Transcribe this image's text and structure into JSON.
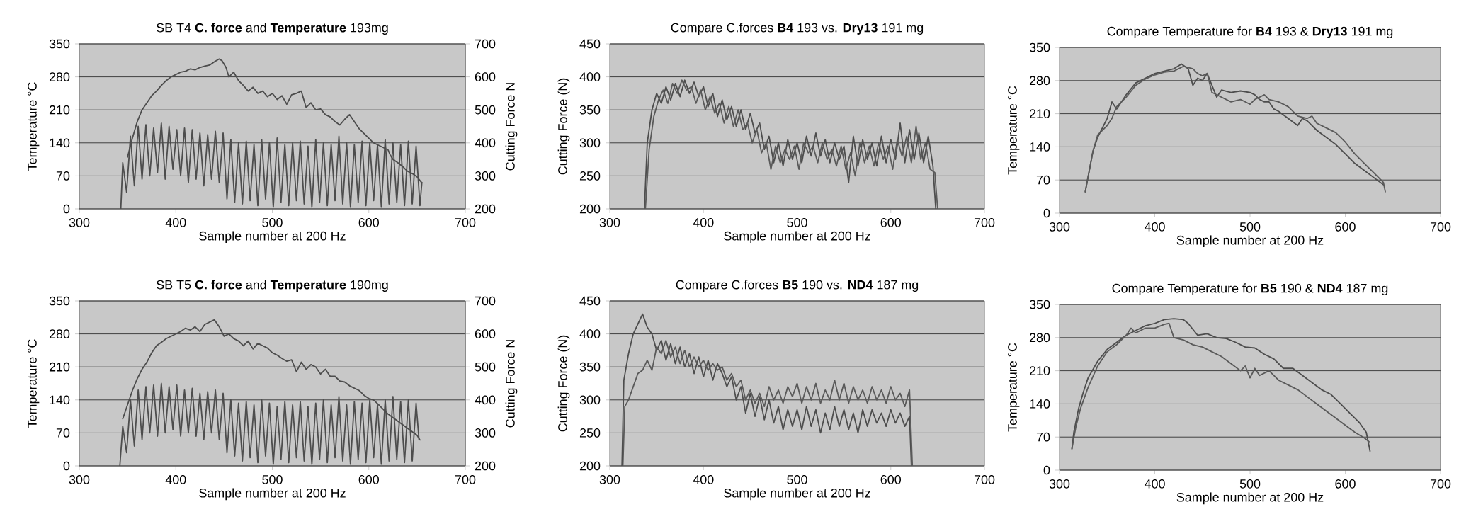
{
  "chart_data": [
    {
      "type": "line",
      "title": "SB T4 **C. force** and **Temperature** 193mg",
      "xlabel": "Sample number at 200 Hz",
      "ylabel": "Temperature °C",
      "y2label": "Cutting Force N",
      "xlim": [
        300,
        700
      ],
      "xticks": [
        300,
        400,
        500,
        600,
        700
      ],
      "ylim": [
        0,
        350
      ],
      "yticks": [
        0,
        70,
        140,
        210,
        280,
        350
      ],
      "y2lim": [
        200,
        700
      ],
      "y2ticks": [
        200,
        300,
        400,
        500,
        600,
        700
      ],
      "grid": "y",
      "series": [
        {
          "color": "#4d4d4d",
          "x": [
            350,
            355,
            360,
            365,
            370,
            375,
            380,
            385,
            390,
            395,
            400,
            405,
            410,
            415,
            420,
            425,
            430,
            435,
            440,
            445,
            448,
            452,
            455,
            460,
            465,
            470,
            475,
            480,
            485,
            490,
            495,
            500,
            505,
            510,
            515,
            520,
            525,
            530,
            535,
            540,
            545,
            550,
            555,
            560,
            565,
            570,
            575,
            580,
            585,
            590,
            595,
            600,
            605,
            610,
            615,
            620,
            622,
            625,
            630,
            635,
            640,
            645,
            650,
            655
          ],
          "values": [
            110,
            150,
            185,
            210,
            225,
            240,
            250,
            262,
            272,
            280,
            285,
            290,
            292,
            297,
            295,
            300,
            303,
            305,
            312,
            318,
            314,
            300,
            280,
            290,
            272,
            262,
            250,
            258,
            245,
            250,
            238,
            245,
            232,
            240,
            222,
            242,
            245,
            250,
            215,
            225,
            210,
            212,
            200,
            195,
            185,
            178,
            190,
            200,
            185,
            170,
            160,
            150,
            140,
            135,
            130,
            125,
            115,
            105,
            98,
            90,
            80,
            75,
            68,
            55
          ]
        },
        {
          "color": "#4d4d4d",
          "axis": "y2",
          "x": [
            343,
            345,
            349,
            353,
            357,
            361,
            365,
            369,
            373,
            377,
            381,
            385,
            389,
            393,
            397,
            401,
            405,
            409,
            413,
            417,
            421,
            425,
            429,
            433,
            437,
            441,
            445,
            449,
            453,
            457,
            461,
            465,
            469,
            473,
            477,
            481,
            485,
            489,
            493,
            497,
            501,
            505,
            509,
            513,
            517,
            521,
            525,
            529,
            533,
            537,
            541,
            545,
            549,
            553,
            557,
            561,
            565,
            569,
            573,
            577,
            581,
            585,
            589,
            593,
            597,
            601,
            605,
            609,
            613,
            617,
            621,
            625,
            629,
            633,
            637,
            641,
            645,
            649,
            653,
            655
          ],
          "values": [
            200,
            340,
            250,
            420,
            270,
            450,
            290,
            455,
            300,
            445,
            310,
            460,
            290,
            450,
            320,
            440,
            300,
            445,
            280,
            440,
            290,
            430,
            270,
            425,
            290,
            435,
            280,
            430,
            230,
            410,
            220,
            400,
            215,
            405,
            225,
            395,
            210,
            410,
            230,
            400,
            205,
            415,
            220,
            395,
            210,
            400,
            225,
            405,
            215,
            390,
            205,
            410,
            220,
            400,
            210,
            395,
            225,
            420,
            215,
            400,
            205,
            395,
            220,
            405,
            210,
            400,
            225,
            395,
            205,
            410,
            215,
            400,
            220,
            395,
            210,
            405,
            215,
            390,
            210,
            280
          ]
        }
      ]
    },
    {
      "type": "line",
      "title": "Compare C.forces **B4** 193 vs. **Dry13** 191 mg",
      "xlabel": "Sample number at 200 Hz",
      "ylabel": "Cutting Force (N)",
      "xlim": [
        300,
        700
      ],
      "xticks": [
        300,
        400,
        500,
        600,
        700
      ],
      "ylim": [
        200,
        450
      ],
      "yticks": [
        200,
        250,
        300,
        350,
        400,
        450
      ],
      "grid": "y",
      "series": [
        {
          "color": "#4d4d4d",
          "x": [
            337,
            340,
            345,
            350,
            355,
            360,
            365,
            370,
            375,
            380,
            385,
            390,
            395,
            400,
            405,
            410,
            415,
            420,
            425,
            430,
            435,
            440,
            445,
            450,
            455,
            460,
            465,
            470,
            475,
            480,
            485,
            490,
            495,
            500,
            505,
            510,
            515,
            520,
            525,
            530,
            535,
            540,
            545,
            550,
            555,
            560,
            565,
            570,
            575,
            580,
            585,
            590,
            595,
            600,
            605,
            610,
            615,
            620,
            625,
            630,
            635,
            640,
            645,
            648
          ],
          "values": [
            200,
            300,
            350,
            375,
            360,
            385,
            365,
            390,
            370,
            395,
            375,
            392,
            370,
            385,
            355,
            375,
            340,
            365,
            335,
            355,
            325,
            350,
            320,
            345,
            315,
            330,
            290,
            310,
            270,
            300,
            265,
            305,
            275,
            300,
            270,
            310,
            280,
            315,
            280,
            305,
            270,
            300,
            275,
            295,
            240,
            310,
            265,
            305,
            275,
            300,
            265,
            310,
            270,
            305,
            275,
            330,
            270,
            320,
            275,
            315,
            270,
            310,
            265,
            200
          ]
        },
        {
          "color": "#5a5a5a",
          "x": [
            338,
            342,
            347,
            352,
            357,
            362,
            367,
            372,
            377,
            382,
            387,
            392,
            397,
            402,
            407,
            412,
            417,
            422,
            427,
            432,
            437,
            442,
            447,
            452,
            457,
            462,
            467,
            472,
            477,
            482,
            487,
            492,
            497,
            502,
            507,
            512,
            517,
            522,
            527,
            532,
            537,
            542,
            547,
            552,
            557,
            562,
            567,
            572,
            577,
            582,
            587,
            592,
            597,
            602,
            607,
            612,
            617,
            622,
            627,
            632,
            637,
            642,
            647,
            650
          ],
          "values": [
            200,
            290,
            340,
            365,
            380,
            360,
            390,
            375,
            395,
            380,
            385,
            360,
            380,
            350,
            370,
            345,
            360,
            330,
            355,
            325,
            350,
            320,
            330,
            300,
            320,
            285,
            300,
            260,
            295,
            270,
            290,
            275,
            295,
            260,
            300,
            285,
            295,
            270,
            300,
            275,
            290,
            265,
            295,
            260,
            285,
            250,
            300,
            270,
            295,
            265,
            300,
            275,
            295,
            260,
            305,
            280,
            310,
            270,
            325,
            275,
            300,
            260,
            255,
            200
          ]
        }
      ]
    },
    {
      "type": "line",
      "title": "Compare Temperature for **B4** 193 & **Dry13** 191 mg",
      "xlabel": "Sample number at 200 Hz",
      "ylabel": "Temperature °C",
      "xlim": [
        300,
        700
      ],
      "xticks": [
        300,
        400,
        500,
        600,
        700
      ],
      "ylim": [
        0,
        350
      ],
      "yticks": [
        0,
        70,
        140,
        210,
        280,
        350
      ],
      "grid": "y",
      "series": [
        {
          "color": "#4d4d4d",
          "x": [
            327,
            335,
            340,
            345,
            350,
            355,
            360,
            370,
            380,
            390,
            400,
            410,
            420,
            428,
            435,
            440,
            445,
            450,
            455,
            460,
            465,
            470,
            480,
            490,
            500,
            505,
            510,
            515,
            520,
            525,
            530,
            540,
            550,
            555,
            560,
            570,
            580,
            590,
            600,
            610,
            620,
            630,
            640
          ],
          "values": [
            45,
            130,
            160,
            180,
            200,
            235,
            220,
            250,
            275,
            285,
            295,
            300,
            305,
            315,
            305,
            270,
            285,
            280,
            295,
            270,
            245,
            260,
            255,
            258,
            255,
            250,
            240,
            235,
            235,
            220,
            215,
            200,
            185,
            200,
            195,
            175,
            160,
            145,
            125,
            105,
            90,
            75,
            60
          ]
        },
        {
          "color": "#5a5a5a",
          "x": [
            327,
            335,
            340,
            345,
            350,
            355,
            360,
            370,
            380,
            390,
            400,
            410,
            420,
            430,
            440,
            445,
            450,
            455,
            460,
            470,
            480,
            490,
            500,
            505,
            510,
            515,
            520,
            530,
            540,
            550,
            560,
            565,
            570,
            580,
            590,
            600,
            610,
            620,
            630,
            640,
            642
          ],
          "values": [
            45,
            130,
            165,
            175,
            185,
            200,
            225,
            245,
            270,
            283,
            292,
            298,
            300,
            310,
            305,
            295,
            290,
            295,
            255,
            245,
            235,
            240,
            230,
            240,
            245,
            250,
            240,
            235,
            225,
            205,
            200,
            205,
            190,
            180,
            170,
            150,
            125,
            105,
            85,
            65,
            45
          ]
        }
      ]
    },
    {
      "type": "line",
      "title": "SB T5 **C. force** and **Temperature** 190mg",
      "xlabel": "Sample number at 200 Hz",
      "ylabel": "Temperature °C",
      "y2label": "Cutting Force N",
      "xlim": [
        300,
        700
      ],
      "xticks": [
        300,
        400,
        500,
        600,
        700
      ],
      "ylim": [
        0,
        350
      ],
      "yticks": [
        0,
        70,
        140,
        210,
        280,
        350
      ],
      "y2lim": [
        200,
        700
      ],
      "y2ticks": [
        200,
        300,
        400,
        500,
        600,
        700
      ],
      "grid": "y",
      "series": [
        {
          "color": "#4d4d4d",
          "x": [
            345,
            350,
            355,
            360,
            365,
            370,
            375,
            380,
            385,
            390,
            395,
            400,
            405,
            410,
            415,
            420,
            425,
            430,
            435,
            440,
            445,
            450,
            455,
            460,
            465,
            470,
            475,
            480,
            485,
            490,
            495,
            500,
            505,
            510,
            515,
            520,
            525,
            530,
            535,
            540,
            545,
            550,
            555,
            560,
            565,
            570,
            575,
            580,
            585,
            590,
            595,
            600,
            605,
            610,
            615,
            620,
            630,
            640,
            650,
            653
          ],
          "values": [
            100,
            130,
            160,
            185,
            205,
            220,
            240,
            255,
            262,
            270,
            275,
            280,
            285,
            292,
            288,
            295,
            285,
            300,
            305,
            310,
            295,
            275,
            280,
            270,
            265,
            255,
            265,
            248,
            260,
            255,
            250,
            240,
            235,
            228,
            222,
            225,
            200,
            220,
            205,
            215,
            210,
            195,
            205,
            190,
            190,
            180,
            178,
            170,
            165,
            160,
            150,
            143,
            140,
            130,
            120,
            110,
            95,
            80,
            65,
            55
          ]
        },
        {
          "color": "#4d4d4d",
          "axis": "y2",
          "x": [
            342,
            345,
            349,
            353,
            357,
            361,
            365,
            369,
            373,
            377,
            381,
            385,
            389,
            393,
            397,
            401,
            405,
            409,
            413,
            417,
            421,
            425,
            429,
            433,
            437,
            441,
            445,
            449,
            453,
            457,
            461,
            465,
            469,
            473,
            477,
            481,
            485,
            489,
            493,
            497,
            501,
            505,
            509,
            513,
            517,
            521,
            525,
            529,
            533,
            537,
            541,
            545,
            549,
            553,
            557,
            561,
            565,
            569,
            573,
            577,
            581,
            585,
            589,
            593,
            597,
            601,
            605,
            609,
            613,
            617,
            621,
            625,
            629,
            633,
            637,
            641,
            645,
            649,
            652
          ],
          "values": [
            200,
            320,
            240,
            400,
            260,
            430,
            280,
            440,
            300,
            445,
            290,
            450,
            300,
            440,
            310,
            445,
            290,
            430,
            300,
            435,
            290,
            420,
            280,
            425,
            300,
            430,
            280,
            420,
            240,
            400,
            230,
            390,
            215,
            395,
            225,
            385,
            210,
            400,
            230,
            390,
            205,
            380,
            220,
            395,
            210,
            385,
            225,
            395,
            215,
            380,
            205,
            390,
            220,
            400,
            210,
            385,
            225,
            410,
            215,
            385,
            205,
            395,
            220,
            390,
            210,
            400,
            225,
            385,
            205,
            400,
            215,
            410,
            220,
            395,
            210,
            400,
            215,
            390,
            280
          ]
        }
      ]
    },
    {
      "type": "line",
      "title": "Compare C.forces **B5** 190 vs. **ND4** 187 mg",
      "xlabel": "Sample number at 200 Hz",
      "ylabel": "Cutting Force (N)",
      "xlim": [
        300,
        700
      ],
      "xticks": [
        300,
        400,
        500,
        600,
        700
      ],
      "ylim": [
        200,
        450
      ],
      "yticks": [
        200,
        250,
        300,
        350,
        400,
        450
      ],
      "grid": "y",
      "series": [
        {
          "color": "#4d4d4d",
          "x": [
            313,
            315,
            320,
            325,
            330,
            335,
            340,
            345,
            350,
            355,
            360,
            365,
            370,
            375,
            380,
            385,
            390,
            395,
            400,
            405,
            410,
            415,
            420,
            425,
            430,
            435,
            440,
            445,
            450,
            455,
            460,
            465,
            470,
            475,
            480,
            485,
            490,
            495,
            500,
            505,
            510,
            515,
            520,
            525,
            530,
            535,
            540,
            545,
            550,
            555,
            560,
            565,
            570,
            575,
            580,
            585,
            590,
            595,
            600,
            605,
            610,
            615,
            620,
            622
          ],
          "values": [
            200,
            330,
            370,
            400,
            415,
            430,
            410,
            400,
            375,
            390,
            360,
            385,
            355,
            380,
            350,
            370,
            340,
            365,
            335,
            360,
            330,
            355,
            340,
            320,
            335,
            300,
            320,
            280,
            310,
            275,
            305,
            270,
            300,
            265,
            290,
            255,
            285,
            260,
            285,
            255,
            290,
            260,
            285,
            250,
            280,
            255,
            290,
            260,
            285,
            255,
            280,
            250,
            285,
            260,
            285,
            265,
            280,
            260,
            285,
            265,
            280,
            260,
            275,
            200
          ]
        },
        {
          "color": "#5a5a5a",
          "x": [
            314,
            316,
            320,
            325,
            330,
            335,
            340,
            345,
            350,
            355,
            360,
            365,
            370,
            375,
            380,
            385,
            390,
            395,
            400,
            405,
            410,
            415,
            420,
            425,
            430,
            435,
            440,
            445,
            450,
            455,
            460,
            465,
            470,
            475,
            480,
            485,
            490,
            495,
            500,
            505,
            510,
            515,
            520,
            525,
            530,
            535,
            540,
            545,
            550,
            555,
            560,
            565,
            570,
            575,
            580,
            585,
            590,
            595,
            600,
            605,
            610,
            615,
            620,
            623
          ],
          "values": [
            200,
            290,
            300,
            320,
            340,
            345,
            360,
            345,
            380,
            370,
            390,
            365,
            380,
            355,
            375,
            350,
            365,
            350,
            360,
            345,
            355,
            345,
            350,
            330,
            340,
            320,
            330,
            300,
            315,
            295,
            310,
            290,
            320,
            300,
            315,
            295,
            320,
            305,
            325,
            295,
            320,
            300,
            325,
            295,
            315,
            300,
            330,
            300,
            325,
            295,
            320,
            300,
            315,
            295,
            320,
            300,
            315,
            295,
            320,
            300,
            310,
            290,
            315,
            200
          ]
        }
      ]
    },
    {
      "type": "line",
      "title": "Compare Temperature for **B5** 190 & **ND4** 187 mg",
      "xlabel": "Sample number at 200 Hz",
      "ylabel": "Temperature °C",
      "xlim": [
        300,
        700
      ],
      "xticks": [
        300,
        400,
        500,
        600,
        700
      ],
      "ylim": [
        0,
        350
      ],
      "yticks": [
        0,
        70,
        140,
        210,
        280,
        350
      ],
      "grid": "y",
      "series": [
        {
          "color": "#4d4d4d",
          "x": [
            313,
            315,
            320,
            325,
            330,
            340,
            350,
            360,
            370,
            380,
            390,
            400,
            410,
            420,
            430,
            435,
            445,
            455,
            465,
            475,
            485,
            495,
            505,
            515,
            525,
            535,
            545,
            555,
            565,
            575,
            585,
            595,
            605,
            615,
            622,
            626
          ],
          "values": [
            45,
            80,
            130,
            165,
            195,
            230,
            255,
            270,
            285,
            295,
            305,
            310,
            318,
            320,
            318,
            310,
            285,
            288,
            280,
            278,
            270,
            260,
            258,
            245,
            235,
            215,
            215,
            200,
            185,
            170,
            160,
            140,
            120,
            100,
            80,
            40
          ]
        },
        {
          "color": "#5a5a5a",
          "x": [
            313,
            317,
            322,
            330,
            340,
            350,
            360,
            370,
            375,
            380,
            390,
            400,
            410,
            415,
            420,
            430,
            440,
            450,
            460,
            470,
            480,
            490,
            495,
            500,
            505,
            510,
            520,
            530,
            540,
            550,
            560,
            570,
            580,
            590,
            600,
            610,
            620,
            625
          ],
          "values": [
            45,
            90,
            130,
            175,
            220,
            250,
            265,
            285,
            300,
            290,
            300,
            300,
            308,
            310,
            280,
            275,
            265,
            260,
            250,
            240,
            225,
            210,
            220,
            195,
            215,
            200,
            210,
            190,
            180,
            170,
            155,
            140,
            125,
            110,
            95,
            80,
            68,
            60
          ]
        }
      ]
    }
  ]
}
